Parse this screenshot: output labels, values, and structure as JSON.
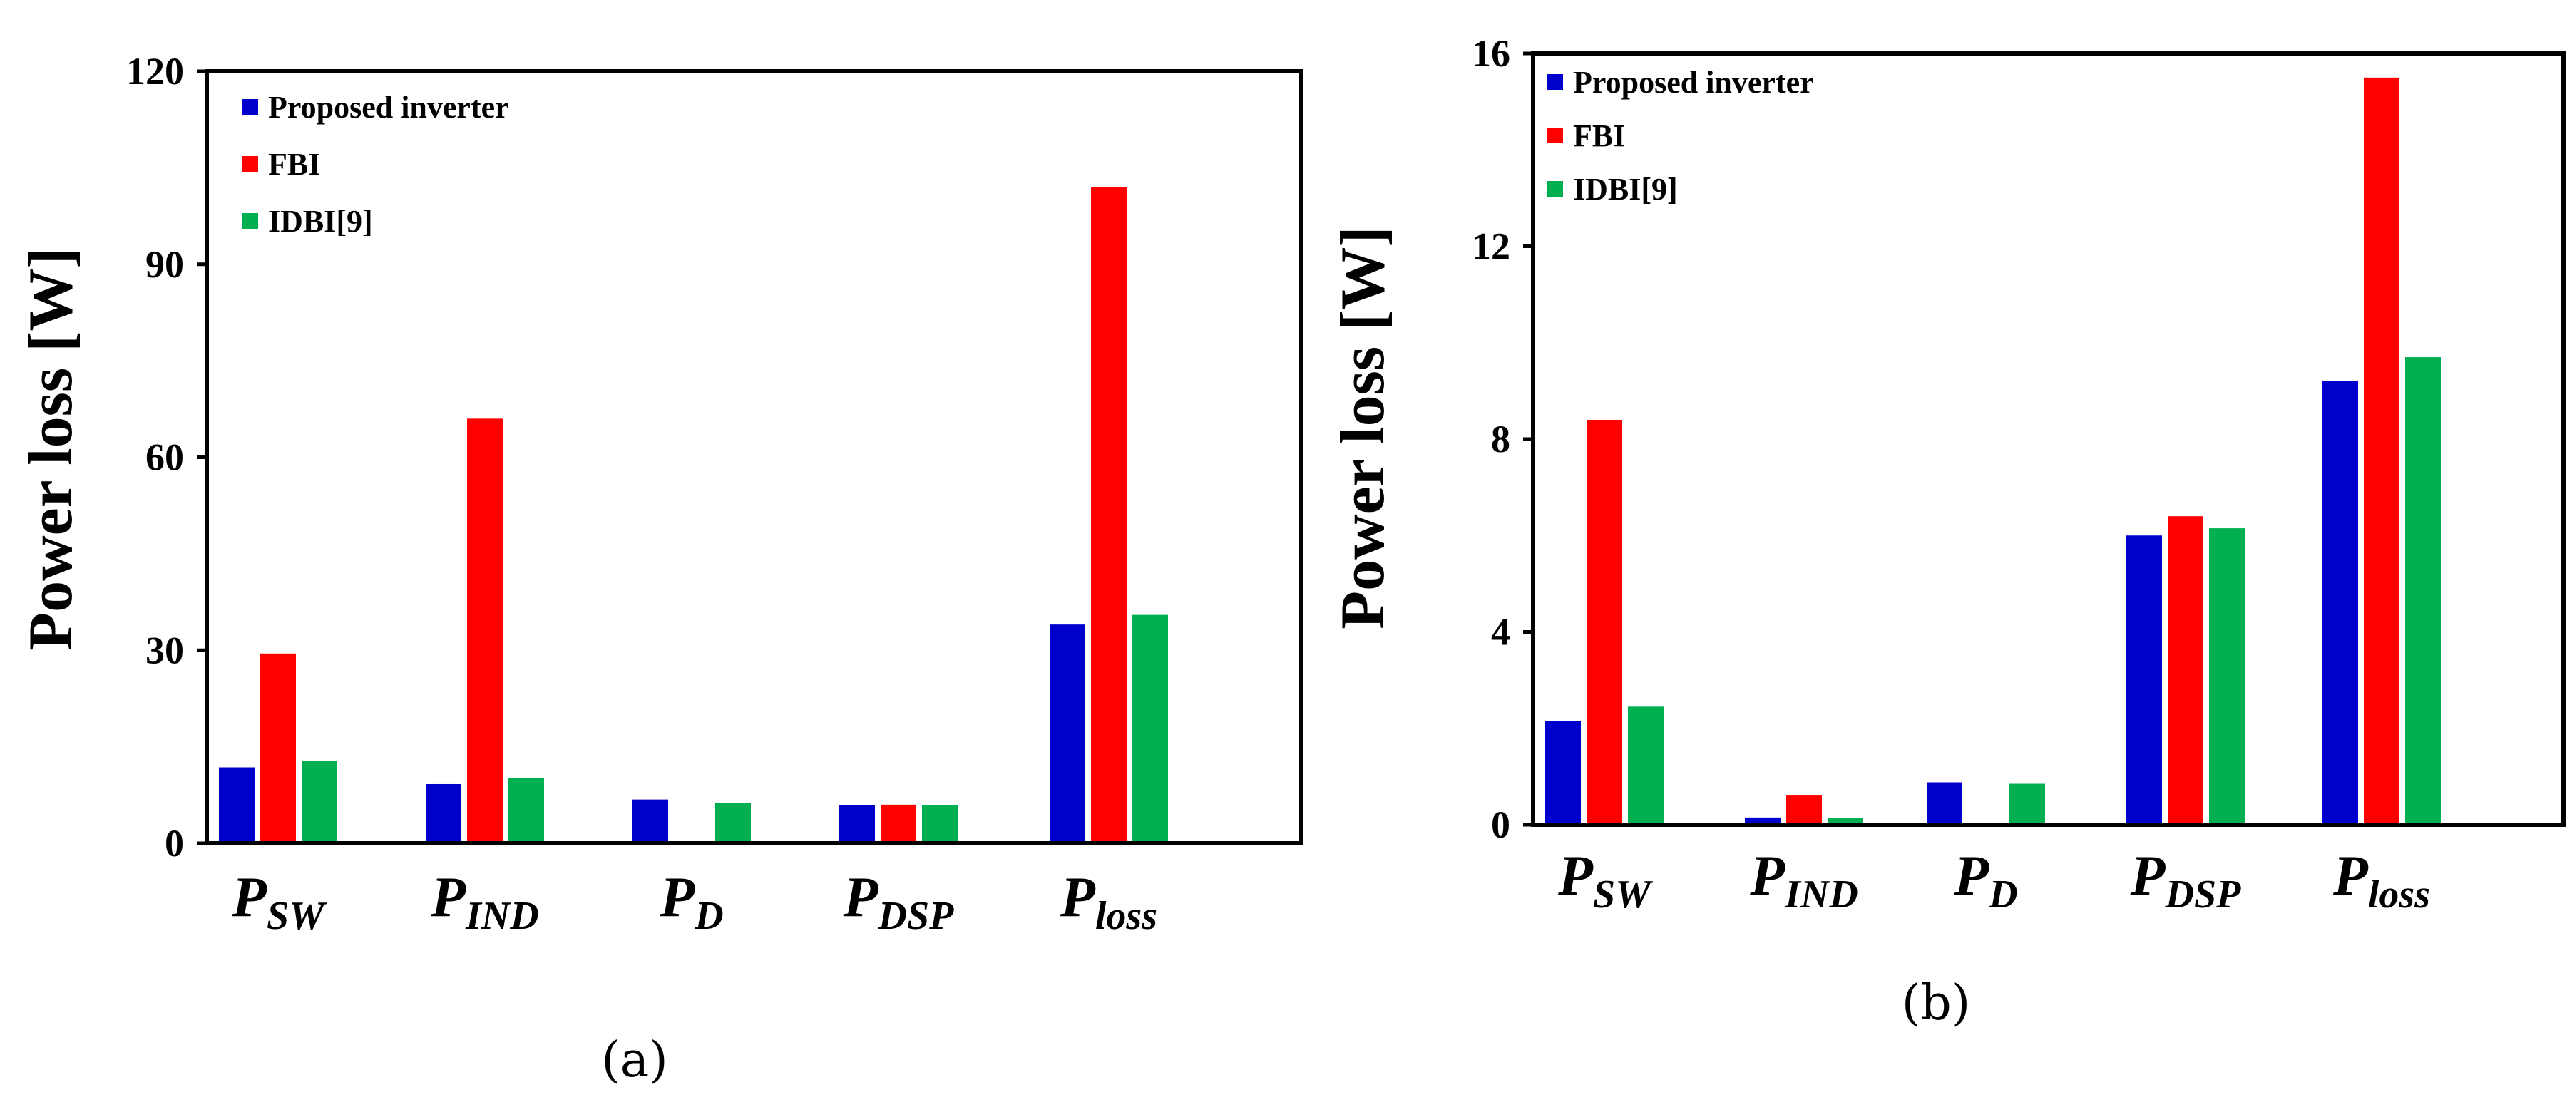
{
  "colors": {
    "Proposed inverter": "#0000CC",
    "FBI": "#FF0000",
    "IDBI[9]": "#00B050"
  },
  "chart_data": [
    {
      "type": "bar",
      "panel_label": "(a)",
      "title": "",
      "xlabel": "",
      "ylabel": "Power loss [W]",
      "ylim": [
        0,
        120
      ],
      "yticks": [
        "0",
        "30",
        "60",
        "90",
        "120"
      ],
      "categories": [
        {
          "main": "P",
          "sub": "SW"
        },
        {
          "main": "P",
          "sub": "IND"
        },
        {
          "main": "P",
          "sub": "D"
        },
        {
          "main": "P",
          "sub": "DSP"
        },
        {
          "main": "P",
          "sub": "loss"
        }
      ],
      "legend_position": "top-left",
      "series": [
        {
          "name": "Proposed inverter",
          "values": [
            11.8,
            9.2,
            6.8,
            5.9,
            34
          ]
        },
        {
          "name": "FBI",
          "values": [
            29.5,
            66,
            0,
            6,
            102
          ]
        },
        {
          "name": "IDBI[9]",
          "values": [
            12.8,
            10.2,
            6.3,
            5.9,
            35.5
          ]
        }
      ]
    },
    {
      "type": "bar",
      "panel_label": "(b)",
      "title": "",
      "xlabel": "",
      "ylabel": "Power loss [W]",
      "ylim": [
        0,
        16
      ],
      "yticks": [
        "0",
        "4",
        "8",
        "12",
        "16"
      ],
      "categories": [
        {
          "main": "P",
          "sub": "SW"
        },
        {
          "main": "P",
          "sub": "IND"
        },
        {
          "main": "P",
          "sub": "D"
        },
        {
          "main": "P",
          "sub": "DSP"
        },
        {
          "main": "P",
          "sub": "loss"
        }
      ],
      "legend_position": "top-left",
      "series": [
        {
          "name": "Proposed inverter",
          "values": [
            2.15,
            0.15,
            0.88,
            6.0,
            9.2
          ]
        },
        {
          "name": "FBI",
          "values": [
            8.4,
            0.62,
            0,
            6.4,
            15.5
          ]
        },
        {
          "name": "IDBI[9]",
          "values": [
            2.45,
            0.14,
            0.85,
            6.15,
            9.7
          ]
        }
      ]
    }
  ]
}
